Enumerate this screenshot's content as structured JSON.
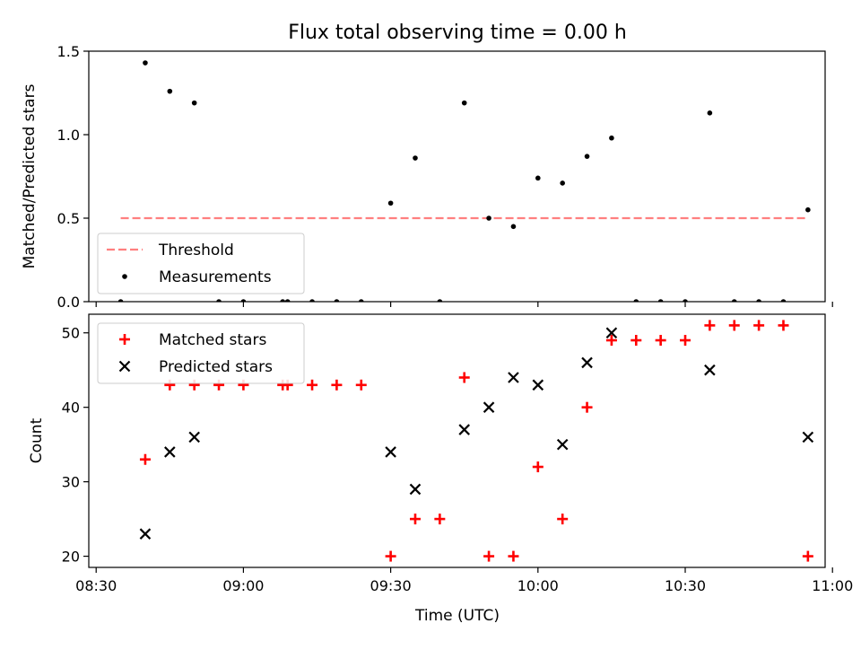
{
  "figure": {
    "title": "Flux total observing time = 0.00 h",
    "xlabel": "Time (UTC)",
    "x_tick_labels": [
      "08:30",
      "09:00",
      "09:30",
      "10:00",
      "10:30",
      "11:00"
    ],
    "x_ticks_min": [
      510,
      540,
      570,
      600,
      630,
      660
    ],
    "xlim_min": [
      508.5,
      658.5
    ]
  },
  "chart_data": [
    {
      "type": "scatter",
      "ylabel": "Matched/Predicted stars",
      "ylim": [
        0,
        1.5
      ],
      "y_ticks": [
        0,
        0.5,
        1.0,
        1.5
      ],
      "y_tick_labels": [
        "0.0",
        "0.5",
        "1.0",
        "1.5"
      ],
      "legend_position": "lower-left",
      "series": [
        {
          "name": "Threshold",
          "kind": "dashed-line",
          "color": "#ff7f7f",
          "x": [
            "08:35",
            "10:55"
          ],
          "y": [
            0.5,
            0.5
          ]
        },
        {
          "name": "Measurements",
          "kind": "dot",
          "color": "#000000",
          "x": [
            "08:35",
            "08:40",
            "08:45",
            "08:50",
            "08:55",
            "09:00",
            "09:08",
            "09:09",
            "09:14",
            "09:19",
            "09:24",
            "09:30",
            "09:35",
            "09:40",
            "09:45",
            "09:50",
            "09:55",
            "10:00",
            "10:05",
            "10:10",
            "10:15",
            "10:20",
            "10:25",
            "10:30",
            "10:35",
            "10:40",
            "10:45",
            "10:50",
            "10:55"
          ],
          "y": [
            0.0,
            1.43,
            1.26,
            1.19,
            0.0,
            0.0,
            0.0,
            0.0,
            0.0,
            0.0,
            0.0,
            0.59,
            0.86,
            0.0,
            1.19,
            0.5,
            0.45,
            0.74,
            0.71,
            0.87,
            0.98,
            0.0,
            0.0,
            0.0,
            1.13,
            0.0,
            0.0,
            0.0,
            0.55
          ]
        }
      ]
    },
    {
      "type": "scatter",
      "ylabel": "Count",
      "ylim": [
        18.5,
        52.5
      ],
      "y_ticks": [
        20,
        30,
        40,
        50
      ],
      "y_tick_labels": [
        "20",
        "30",
        "40",
        "50"
      ],
      "legend_position": "upper-left",
      "series": [
        {
          "name": "Matched stars",
          "kind": "plus",
          "color": "#ff0000",
          "x": [
            "08:40",
            "08:45",
            "08:50",
            "08:55",
            "09:00",
            "09:08",
            "09:09",
            "09:14",
            "09:19",
            "09:24",
            "09:30",
            "09:35",
            "09:40",
            "09:45",
            "09:50",
            "09:55",
            "10:00",
            "10:05",
            "10:10",
            "10:15",
            "10:20",
            "10:25",
            "10:30",
            "10:35",
            "10:40",
            "10:45",
            "10:50",
            "10:55"
          ],
          "y": [
            33,
            43,
            43,
            43,
            43,
            43,
            43,
            43,
            43,
            43,
            20,
            25,
            25,
            44,
            20,
            20,
            32,
            25,
            40,
            49,
            49,
            49,
            49,
            51,
            51,
            51,
            51,
            20
          ]
        },
        {
          "name": "Predicted stars",
          "kind": "x",
          "color": "#000000",
          "x": [
            "08:40",
            "08:45",
            "08:50",
            "09:30",
            "09:35",
            "09:45",
            "09:50",
            "09:55",
            "10:00",
            "10:05",
            "10:10",
            "10:15",
            "10:35",
            "10:55"
          ],
          "y": [
            23,
            34,
            36,
            34,
            29,
            37,
            40,
            44,
            43,
            35,
            46,
            50,
            45,
            36
          ]
        }
      ]
    }
  ]
}
